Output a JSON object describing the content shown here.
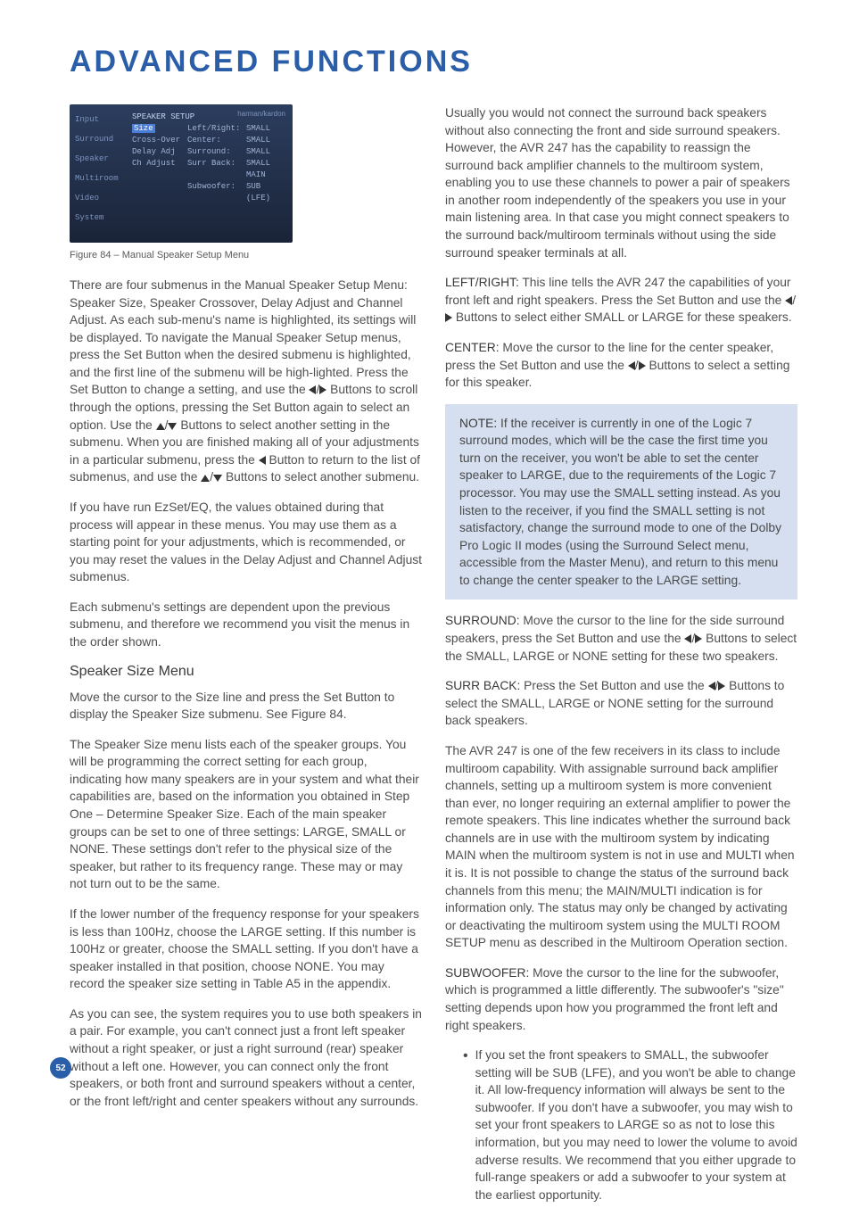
{
  "title": "ADVANCED FUNCTIONS",
  "page_number": "52",
  "menu": {
    "brand": "harman/kardon",
    "left_items": [
      "Input",
      "Surround",
      "Speaker",
      "Multiroom",
      "Video",
      "System"
    ],
    "heading": "SPEAKER SETUP",
    "rows": [
      {
        "l": "Size",
        "c": "Left/Right:",
        "v": "SMALL",
        "hi": true
      },
      {
        "l": "Cross-Over",
        "c": "Center:",
        "v": "SMALL"
      },
      {
        "l": "Delay Adj",
        "c": "Surround:",
        "v": "SMALL"
      },
      {
        "l": "Ch Adjust",
        "c": "Surr Back:",
        "v": "SMALL MAIN"
      },
      {
        "l": "",
        "c": "Subwoofer:",
        "v": "SUB (LFE)"
      }
    ]
  },
  "caption": "Figure 84 – Manual Speaker Setup Menu",
  "left": {
    "p1a": "There are four submenus in the Manual Speaker Setup Menu: Speaker Size, Speaker Crossover, Delay Adjust and Channel Adjust. As each sub-menu's name is highlighted, its settings will be displayed. To navigate the Manual Speaker Setup menus, press the Set Button when the desired submenu is highlighted, and the first line of the submenu will be high-lighted. Press the Set Button to change a setting, and use the ",
    "p1b": " Buttons to scroll through the options, pressing the Set Button again to select an option. Use the ",
    "p1c": " Buttons to select another setting in the submenu. When you are finished making all of your adjustments in a particular submenu, press the ",
    "p1d": " Button to return to the list of submenus, and use the ",
    "p1e": " Buttons to select another submenu.",
    "p2": "If you have run EzSet/EQ, the values obtained during that process will appear in these menus. You may use them as a starting point for your adjustments, which is recommended, or you may reset the values in the Delay Adjust and Channel Adjust submenus.",
    "p3": "Each submenu's settings are dependent upon the previous submenu, and therefore we recommend you visit the menus in the order shown.",
    "h3": "Speaker Size Menu",
    "p4": "Move the cursor to the Size line and press the Set Button to display the Speaker Size submenu. See Figure 84.",
    "p5": "The Speaker Size menu lists each of the speaker groups. You will be programming the correct setting for each group, indicating how many speakers are in your system and what their capabilities are, based on the information you obtained in Step One – Determine Speaker Size. Each of the main speaker groups can be set to one of three settings: LARGE, SMALL or NONE. These settings don't refer to the physical size of the speaker, but rather to its frequency range. These may or may not turn out to be the same.",
    "p6": "If the lower number of the frequency response for your speakers is less than 100Hz, choose the LARGE setting. If this number is 100Hz or greater, choose the SMALL setting. If you don't have a speaker installed in that position, choose NONE. You may record the speaker size setting in Table A5 in the appendix.",
    "p7": "As you can see, the system requires you to use both speakers in a pair. For example, you can't connect just a front left speaker without a right speaker, or just a right surround (rear) speaker without a left one. However, you can connect only the front speakers, or both front and surround speakers without a center, or the front left/right and center speakers without any surrounds."
  },
  "right": {
    "p1": "Usually you would not connect the surround back speakers without also connecting the front and side surround speakers. However, the AVR 247 has the capability to reassign the surround back amplifier channels to the multiroom system, enabling you to use these channels to power a pair of speakers in another room independently of the speakers you use in your main listening area. In that case you might connect speakers to the surround back/multiroom terminals without using the side surround speaker terminals at all.",
    "lr_label": "LEFT/RIGHT:",
    "lr_a": " This line tells the AVR 247 the capabilities of your front left and right speakers. Press the Set Button and use the ",
    "lr_b": " Buttons to select either SMALL or LARGE for these speakers.",
    "center_label": "CENTER:",
    "center_a": " Move the cursor to the line for the center speaker, press the Set Button and use the ",
    "center_b": " Buttons to select a setting for this speaker.",
    "note_label": "NOTE:",
    "note": " If the receiver is currently in one of the Logic 7 surround modes, which will be the case the first time you turn on the receiver, you won't be able to set the center speaker to LARGE, due to the requirements of the Logic 7 processor. You may use the SMALL setting instead. As you listen to the receiver, if you find the SMALL setting is not satisfactory, change the surround mode to one of the Dolby Pro Logic II modes (using the Surround Select menu, accessible from the Master Menu), and return to this menu to change the center speaker to the LARGE setting.",
    "surround_label": "SURROUND:",
    "surround_a": " Move the cursor to the line for the side surround speakers, press the Set Button and use the ",
    "surround_b": " Buttons to select the SMALL, LARGE or NONE setting for these two speakers.",
    "sb_label": "SURR BACK:",
    "sb_a": " Press the Set Button and use the ",
    "sb_b": " Buttons to select the SMALL, LARGE or NONE setting for the surround back speakers.",
    "p5": "The AVR 247 is one of the few receivers in its class to include multiroom capability. With assignable surround back amplifier channels, setting up a multiroom system is more convenient than ever, no longer requiring an external amplifier to power the remote speakers. This line indicates whether the surround back channels are in use with the multiroom system by indicating MAIN when the multiroom system is not in use and MULTI when it is. It is not possible to change the status of the surround back channels from this menu; the MAIN/MULTI indication is for information only. The status may only be changed by activating or deactivating the multiroom system using the MULTI ROOM SETUP menu as described in the Multiroom Operation section.",
    "sub_label": "SUBWOOFER:",
    "sub": " Move the cursor to the line for the subwoofer, which is programmed a little differently. The subwoofer's \"size\" setting depends upon how you programmed the front left and right speakers.",
    "bullet1": "If you set the front speakers to SMALL, the subwoofer setting will be SUB (LFE), and you won't be able to change it. All low-frequency information will always be sent to the subwoofer. If you don't have a subwoofer, you may wish to set your front speakers to LARGE so as not to lose this information, but you may need to lower the volume to avoid adverse results. We recommend that you either upgrade to full-range speakers or add a subwoofer to your system at the earliest opportunity."
  }
}
